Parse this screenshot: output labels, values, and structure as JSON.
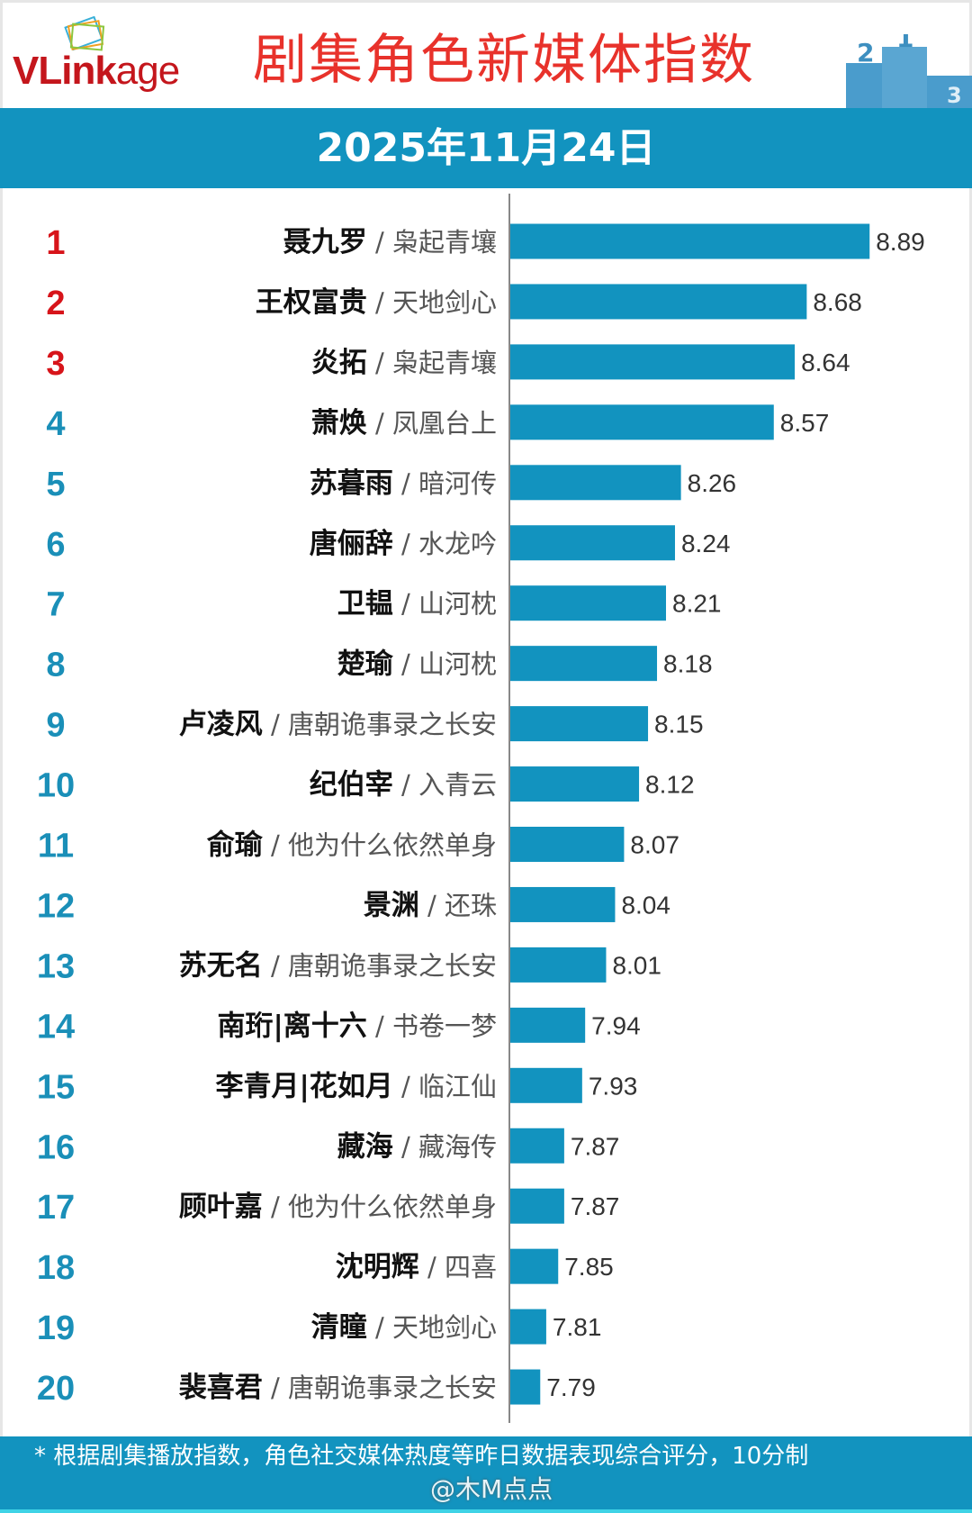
{
  "header": {
    "logo_text_bold": "VLink",
    "logo_text_light": "age",
    "title": "剧集角色新媒体指数",
    "podium_numbers": [
      "2",
      "1",
      "3"
    ]
  },
  "date_band": {
    "date": "2025年11月24日"
  },
  "colors": {
    "bar": "#1293bf",
    "top3_rank": "#d7141a",
    "rank": "#1a8fb8",
    "title": "#e8322b"
  },
  "chart_data": {
    "type": "bar",
    "orientation": "horizontal",
    "title": "剧集角色新媒体指数",
    "xlabel": "",
    "ylabel": "",
    "grid": false,
    "ranks": [
      "1",
      "2",
      "3",
      "4",
      "5",
      "6",
      "7",
      "8",
      "9",
      "10",
      "11",
      "12",
      "13",
      "14",
      "15",
      "16",
      "17",
      "18",
      "19",
      "20"
    ],
    "categories": [
      "聂九罗",
      "王权富贵",
      "炎拓",
      "萧焕",
      "苏暮雨",
      "唐俪辞",
      "卫韫",
      "楚瑜",
      "卢凌风",
      "纪伯宰",
      "俞瑜",
      "景渊",
      "苏无名",
      "南珩|离十六",
      "李青月|花如月",
      "藏海",
      "顾叶嘉",
      "沈明辉",
      "清瞳",
      "裴喜君"
    ],
    "shows": [
      "枭起青壤",
      "天地剑心",
      "枭起青壤",
      "凤凰台上",
      "暗河传",
      "水龙吟",
      "山河枕",
      "山河枕",
      "唐朝诡事录之长安",
      "入青云",
      "他为什么依然单身",
      "还珠",
      "唐朝诡事录之长安",
      "书卷一梦",
      "临江仙",
      "藏海传",
      "他为什么依然单身",
      "四喜",
      "天地剑心",
      "唐朝诡事录之长安"
    ],
    "values": [
      8.89,
      8.68,
      8.64,
      8.57,
      8.26,
      8.24,
      8.21,
      8.18,
      8.15,
      8.12,
      8.07,
      8.04,
      8.01,
      7.94,
      7.93,
      7.87,
      7.87,
      7.85,
      7.81,
      7.79
    ],
    "value_labels": [
      "8.89",
      "8.68",
      "8.64",
      "8.57",
      "8.26",
      "8.24",
      "8.21",
      "8.18",
      "8.15",
      "8.12",
      "8.07",
      "8.04",
      "8.01",
      "7.94",
      "7.93",
      "7.87",
      "7.87",
      "7.85",
      "7.81",
      "7.79"
    ],
    "separator": "/"
  },
  "footer": {
    "note": "* 根据剧集播放指数，角色社交媒体热度等昨日数据表现综合评分，10分制",
    "watermark": "@木M点点"
  }
}
